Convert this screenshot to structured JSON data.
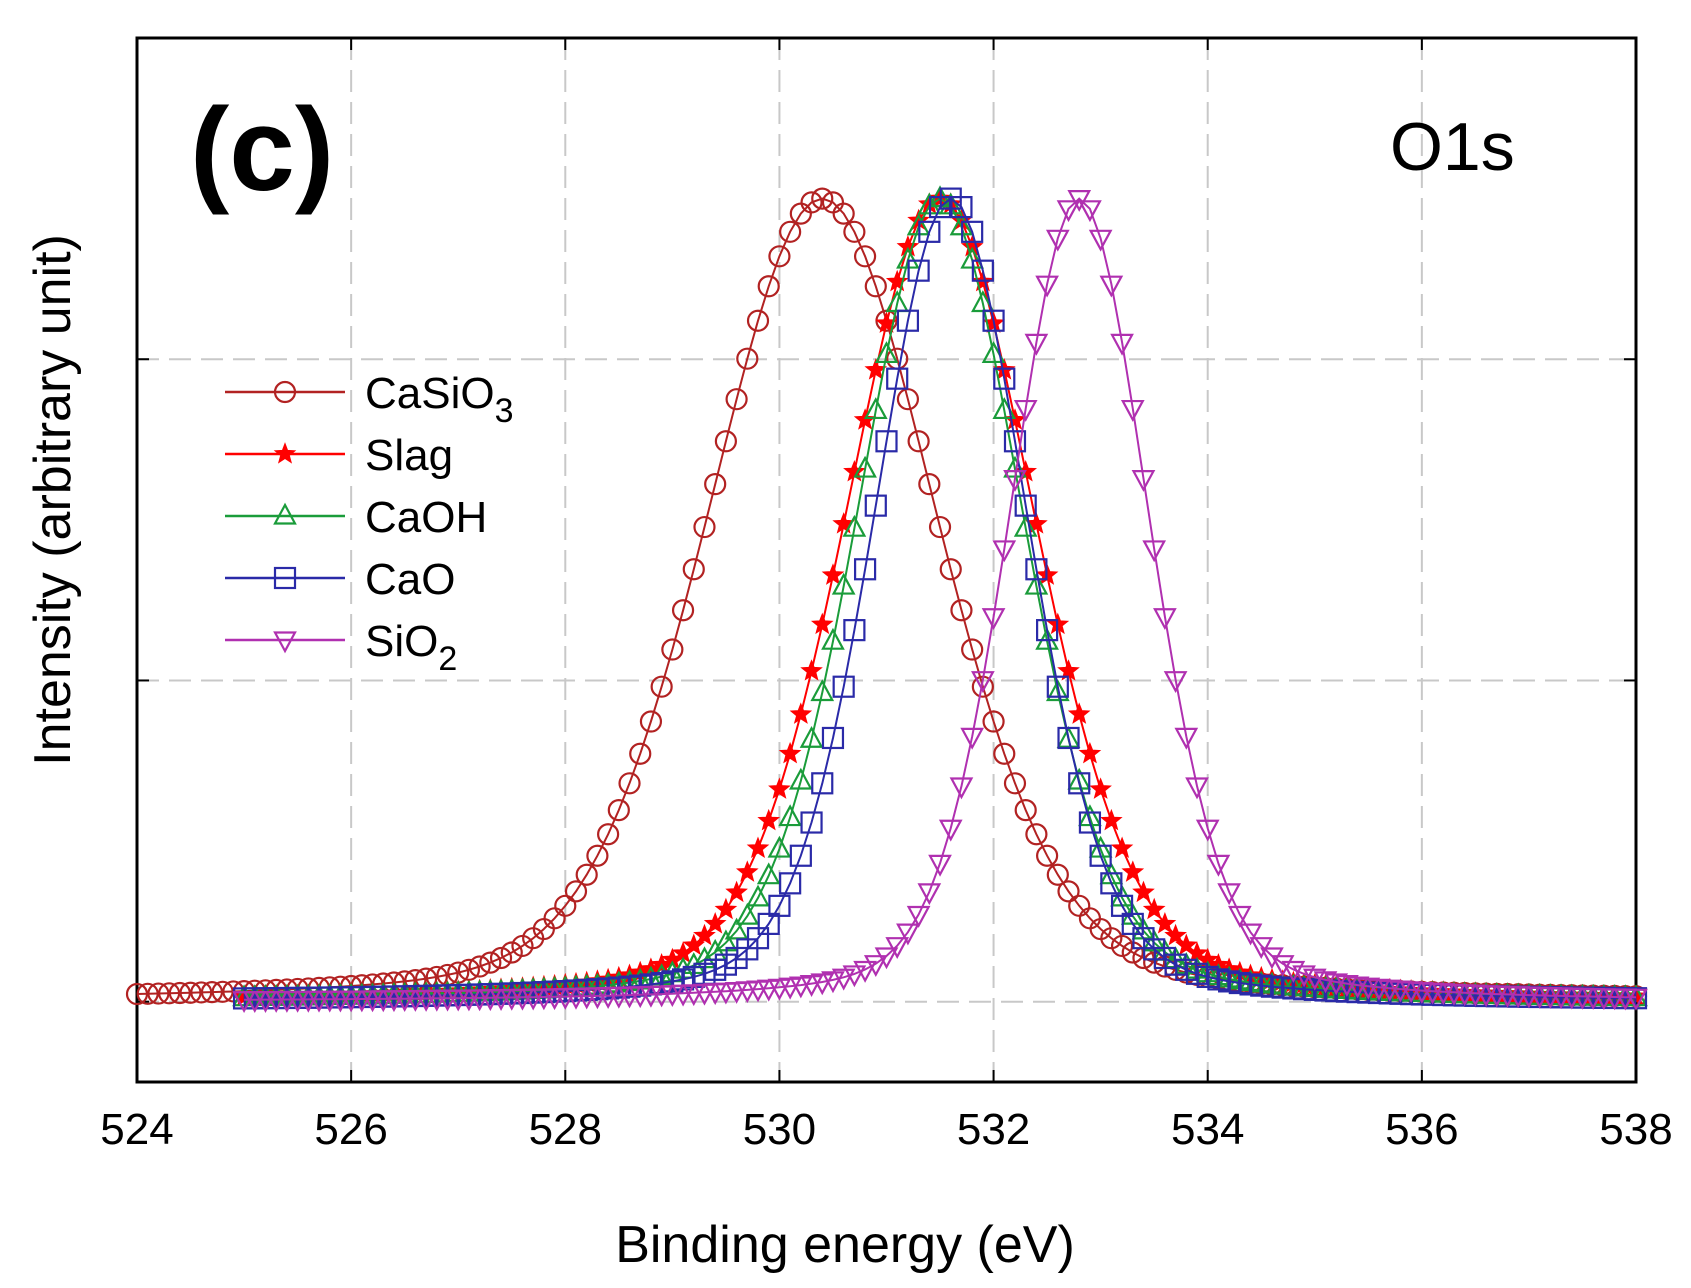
{
  "chart_data": {
    "type": "line",
    "panel_label": "(c)",
    "corner_label": "O1s",
    "xlabel": "Binding energy (eV)",
    "ylabel": "Intensity (arbitrary unit)",
    "xlim": [
      524,
      538
    ],
    "ylim": [
      -0.1,
      1.2
    ],
    "x_ticks": [
      "524",
      "526",
      "528",
      "530",
      "532",
      "534",
      "536",
      "538"
    ],
    "grid": true,
    "legend_position": "upper-left",
    "series": [
      {
        "name": "CaSiO3",
        "label_main": "CaSiO",
        "label_sub": "3",
        "color": "#b22222",
        "marker": "circle",
        "x_start": 524.0,
        "x_end": 538.0,
        "step": 0.1,
        "peak_center": 530.4,
        "peak_height": 1.0,
        "fwhm": 2.55
      },
      {
        "name": "Slag",
        "label_main": "Slag",
        "label_sub": "",
        "color": "#ff0000",
        "marker": "star",
        "x_start": 525.0,
        "x_end": 538.0,
        "step": 0.1,
        "peak_center": 531.5,
        "peak_height": 1.0,
        "fwhm": 2.1
      },
      {
        "name": "CaOH",
        "label_main": "CaOH",
        "label_sub": "",
        "color": "#1a9c3a",
        "marker": "triangle-up",
        "x_start": 525.0,
        "x_end": 538.0,
        "step": 0.1,
        "peak_center": 531.5,
        "peak_height": 1.0,
        "fwhm": 1.85
      },
      {
        "name": "CaO",
        "label_main": "CaO",
        "label_sub": "",
        "color": "#2a2aa8",
        "marker": "square",
        "x_start": 525.0,
        "x_end": 538.0,
        "step": 0.1,
        "peak_center": 531.6,
        "peak_height": 1.0,
        "fwhm": 1.7
      },
      {
        "name": "SiO2",
        "label_main": "SiO",
        "label_sub": "2",
        "color": "#b030b0",
        "marker": "triangle-down",
        "x_start": 525.0,
        "x_end": 538.0,
        "step": 0.1,
        "peak_center": 532.8,
        "peak_height": 1.0,
        "fwhm": 1.55
      }
    ]
  }
}
